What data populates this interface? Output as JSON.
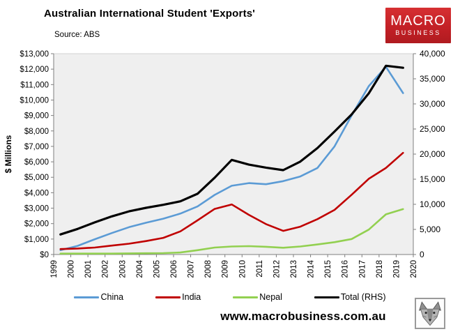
{
  "header": {
    "title": "Australian International Student 'Exports'",
    "source": "Source: ABS",
    "logo": {
      "line1": "MACRO",
      "line2": "BUSINESS",
      "bg_color": "#C32026",
      "text_color": "#FFFFFF"
    }
  },
  "chart_data": {
    "type": "line",
    "title": "Australian International Student 'Exports'",
    "x_tick_labels": [
      "1999",
      "2000",
      "2001",
      "2002",
      "2003",
      "2004",
      "2005",
      "2006",
      "2007",
      "2008",
      "2009",
      "2010",
      "2011",
      "2012",
      "2013",
      "2014",
      "2015",
      "2016",
      "2017",
      "2018",
      "2019",
      "2020"
    ],
    "ylabel": "$ Millions",
    "left_axis": {
      "min": 0,
      "max": 13000,
      "step": 1000,
      "prefix": "$"
    },
    "right_axis": {
      "min": 0,
      "max": 40000,
      "step": 5000
    },
    "plot_bg": "#EFEFEF",
    "grid": false,
    "legend_position": "bottom",
    "points_note": "annual points plotted midway between year ticks (financial years 1999-00 to 2019-20)",
    "series": [
      {
        "name": "China",
        "axis": "left",
        "color": "#5B9BD5",
        "width": 2.6,
        "values": [
          280,
          560,
          990,
          1390,
          1770,
          2060,
          2320,
          2650,
          3110,
          3860,
          4450,
          4620,
          4550,
          4750,
          5050,
          5600,
          7000,
          9000,
          10900,
          12150,
          10450
        ]
      },
      {
        "name": "India",
        "axis": "left",
        "color": "#C00000",
        "width": 2.6,
        "values": [
          350,
          390,
          450,
          580,
          700,
          870,
          1080,
          1500,
          2210,
          2950,
          3240,
          2570,
          1970,
          1530,
          1800,
          2290,
          2890,
          3870,
          4900,
          5600,
          6580
        ]
      },
      {
        "name": "Nepal",
        "axis": "left",
        "color": "#92D050",
        "width": 2.6,
        "values": [
          60,
          60,
          60,
          60,
          70,
          80,
          90,
          130,
          280,
          450,
          520,
          540,
          500,
          440,
          520,
          650,
          800,
          1000,
          1610,
          2600,
          2940
        ]
      },
      {
        "name": "Total (RHS)",
        "axis": "right",
        "color": "#000000",
        "width": 3.2,
        "values": [
          4000,
          5100,
          6400,
          7600,
          8600,
          9300,
          9900,
          10600,
          12100,
          15300,
          18850,
          17900,
          17300,
          16800,
          18500,
          21200,
          24500,
          27900,
          32100,
          37600,
          37200
        ]
      }
    ]
  },
  "footer": {
    "url": "www.macrobusiness.com.au",
    "wolf_logo": "wolf-head-icon"
  }
}
